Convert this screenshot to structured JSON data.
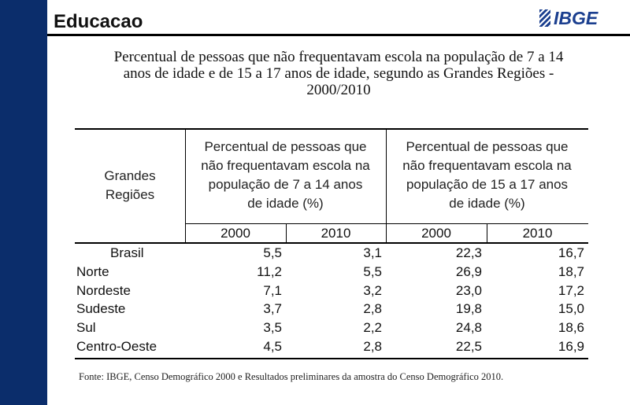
{
  "header": {
    "title": "Educacao",
    "logo": "IBGE"
  },
  "title_lines": [
    "Percentual de pessoas que não frequentavam escola na população de 7 a 14",
    "anos de idade e de 15 a 17 anos de idade, segundo as Grandes Regiões -",
    "2000/2010"
  ],
  "table": {
    "row_header": [
      "Grandes",
      "Regiões"
    ],
    "groups": [
      [
        "Percentual de pessoas que",
        "não frequentavam escola na",
        "população de 7 a 14 anos",
        "de idade (%)"
      ],
      [
        "Percentual de pessoas que",
        "não frequentavam escola na",
        "população de 15 a 17 anos",
        "de idade (%)"
      ]
    ],
    "years": [
      "2000",
      "2010",
      "2000",
      "2010"
    ],
    "rows": [
      [
        "Brasil",
        "5,5",
        "3,1",
        "22,3",
        "16,7"
      ],
      [
        "Norte",
        "11,2",
        "5,5",
        "26,9",
        "18,7"
      ],
      [
        "Nordeste",
        "7,1",
        "3,2",
        "23,0",
        "17,2"
      ],
      [
        "Sudeste",
        "3,7",
        "2,8",
        "19,8",
        "15,0"
      ],
      [
        "Sul",
        "3,5",
        "2,2",
        "24,8",
        "18,6"
      ],
      [
        "Centro-Oeste",
        "4,5",
        "2,8",
        "22,5",
        "16,9"
      ]
    ]
  },
  "source": "Fonte: IBGE, Censo Demográfico 2000  e Resultados preliminares da amostra do Censo Demográfico 2010."
}
